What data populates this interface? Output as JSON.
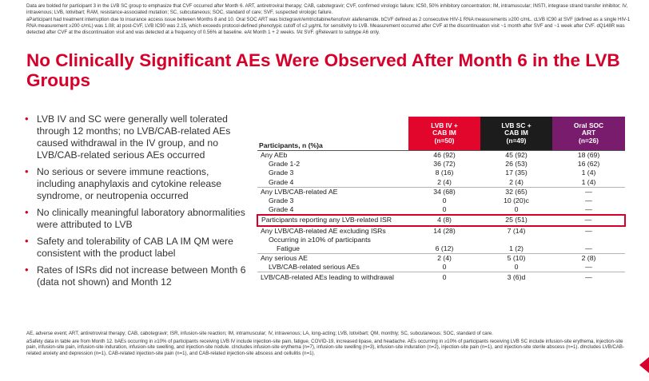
{
  "notes_top": [
    "Data are bolded for participant 3 in the LVB SC group to emphasize that CVF occurred after Month 6. ART, antiretroviral therapy; CAB, cabotegravir; CVF, confirmed virologic failure; IC50, 50% inhibitory concentration; IM, intramuscular; INSTI, integrase strand transfer inhibitor; IV, intravenous; LVB, lotivibart; RAM, resistance-associated mutation; SC, subcutaneous; SOC, standard of care; SVF, suspected virologic failure.",
    "aParticipant had treatment interruption due to insurance access issue between Months 8 and 10. Oral SOC ART was bictegravir/emtricitabine/tenofovir alafenamide. bCVF defined as 2 consecutive HIV-1 RNA measurements ≥200 c/mL. cLVB IC90 at SVF (defined as a single HIV-1 RNA measurement ≥200 c/mL) was 1.08; at post-CVF, LVB IC90 was 2.15, which exceeds protocol-defined phenotypic cutoff of ≤2 μg/mL for sensitivity to LVB. Measurement occurred after CVF at the discontinuation visit ~1 month after SVF and ~1 week after CVF. dQ148R was detected after CVF at the discontinuation visit and was detected at a frequency of 0.56% at baseline. eAt Month 1 + 2 weeks. fAt SVF. gRelevant to subtype A6 only."
  ],
  "title": "No Clinically Significant AEs Were Observed After Month 6 in the LVB Groups",
  "bullets": [
    "LVB IV and SC were generally well tolerated through 12 months; no LVB/CAB-related AEs caused withdrawal in the IV group, and no LVB/CAB-related serious AEs occurred",
    "No serious or severe immune reactions, including anaphylaxis and cytokine release syndrome, or neutropenia occurred",
    "No clinically meaningful laboratory abnormalities were attributed to LVB",
    "Safety and tolerability of CAB LA IM QM were consistent with the product label",
    "Rates of ISRs did not increase between Month 6 (data not shown) and Month 12"
  ],
  "table": {
    "row_header": "Participants, n (%)a",
    "columns": [
      {
        "line1": "LVB IV +",
        "line2": "CAB IM",
        "line3": "(n=50)",
        "color": "#e2062d"
      },
      {
        "line1": "LVB SC +",
        "line2": "CAB IM",
        "line3": "(n=49)",
        "color": "#1c1c1c"
      },
      {
        "line1": "Oral SOC",
        "line2": "ART",
        "line3": "(n=26)",
        "color": "#7a1c6e"
      }
    ],
    "rows": [
      {
        "label": "Any AEb",
        "v": [
          "46 (92)",
          "45 (92)",
          "18 (69)"
        ]
      },
      {
        "label": "Grade 1-2",
        "v": [
          "36 (72)",
          "26 (53)",
          "16 (62)"
        ]
      },
      {
        "label": "Grade 3",
        "v": [
          "8 (16)",
          "17 (35)",
          "1 (4)"
        ]
      },
      {
        "label": "Grade 4",
        "v": [
          "2 (4)",
          "2 (4)",
          "1 (4)"
        ]
      },
      {
        "label": "Any LVB/CAB-related AE",
        "v": [
          "34 (68)",
          "32 (65)",
          "—"
        ]
      },
      {
        "label": "Grade 3",
        "v": [
          "0",
          "10 (20)c",
          "—"
        ]
      },
      {
        "label": "Grade 4",
        "v": [
          "0",
          "0",
          "—"
        ]
      },
      {
        "label": "Participants reporting any LVB-related ISR",
        "v": [
          "4 (8)",
          "25 (51)",
          "—"
        ]
      },
      {
        "label": "Any LVB/CAB-related AE excluding ISRs",
        "v": [
          "14 (28)",
          "7 (14)",
          "—"
        ]
      },
      {
        "label": "Occurring in ≥10% of participants",
        "v": [
          "",
          "",
          ""
        ]
      },
      {
        "label": "Fatigue",
        "v": [
          "6 (12)",
          "1 (2)",
          "—"
        ]
      },
      {
        "label": "Any serious AE",
        "v": [
          "2 (4)",
          "5 (10)",
          "2 (8)"
        ]
      },
      {
        "label": "LVB/CAB-related serious AEs",
        "v": [
          "0",
          "0",
          "—"
        ]
      },
      {
        "label": "LVB/CAB-related AEs leading to withdrawal",
        "v": [
          "0",
          "3 (6)d",
          "—"
        ]
      }
    ]
  },
  "notes_bottom": [
    "AE, adverse event; ART, antiretroviral therapy; CAB, cabotegravir; ISR, infusion-site reaction; IM, intramuscular; IV, intravenous; LA, long-acting; LVB, lotivibart; QM, monthly; SC, subcutaneous; SOC, standard of care.",
    "aSafety data in table are from Month 12. bAEs occurring in ≥10% of participants receiving LVB IV include injection-site pain, fatigue, COVID-19, increased lipase, and headache. AEs occurring in ≥10% of participants receiving LVB SC include infusion-site erythema, injection-site pain, infusion-site pain, infusion-site induration, infusion-site swelling, and injection-site nodule. cIncludes infusion-site erythema (n=7), infusion-site swelling (n=3), infusion-site induration (n=2), injection-site pain (n=1), and injection-site sterile abscess (n=1). dIncludes LVB/CAB-related anxiety and depression (n=1), CAB-related injection-site pain (n=1), and CAB-related injection-site abscess and cellulitis (n=1)."
  ]
}
